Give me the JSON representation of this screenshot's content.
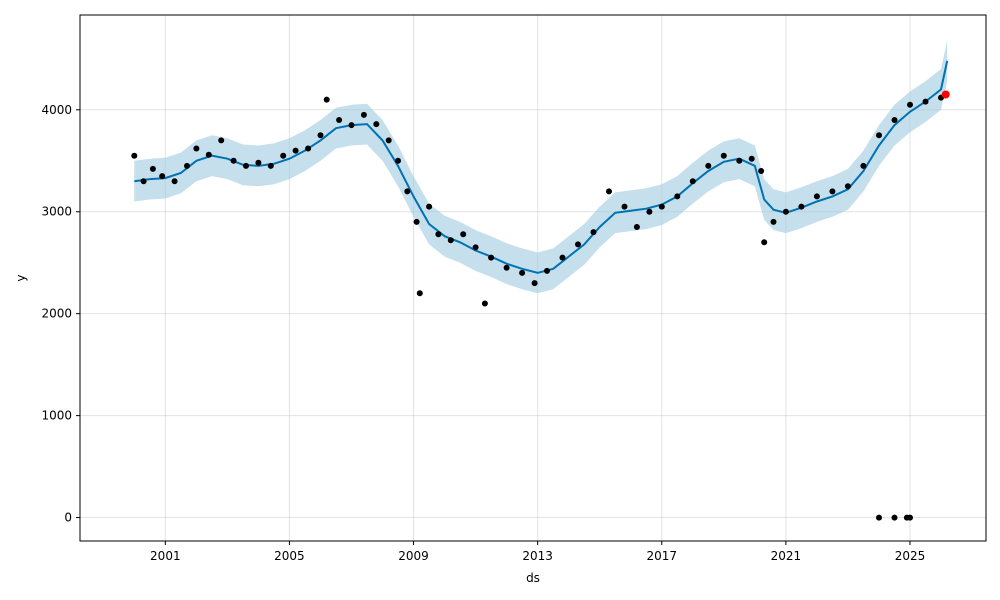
{
  "chart_data": {
    "type": "scatter",
    "xlabel": "ds",
    "ylabel": "y",
    "x_ticks": [
      "2001",
      "2005",
      "2009",
      "2013",
      "2017",
      "2021",
      "2025"
    ],
    "x_tick_years": [
      2001,
      2005,
      2009,
      2013,
      2017,
      2021,
      2025
    ],
    "y_ticks": [
      0,
      1000,
      2000,
      3000,
      4000
    ],
    "xlim": [
      1998.25,
      2027.45
    ],
    "ylim": [
      -230,
      4930
    ],
    "grid": true,
    "colors": {
      "observed": "#000000",
      "forecast_line": "#0072B2",
      "uncertainty_band": "#9ecae1",
      "highlight_point": "#ff0000"
    },
    "observed": [
      {
        "x": 2000.0,
        "y": 3550
      },
      {
        "x": 2000.3,
        "y": 3300
      },
      {
        "x": 2000.6,
        "y": 3420
      },
      {
        "x": 2000.9,
        "y": 3350
      },
      {
        "x": 2001.3,
        "y": 3300
      },
      {
        "x": 2001.7,
        "y": 3450
      },
      {
        "x": 2002.0,
        "y": 3620
      },
      {
        "x": 2002.4,
        "y": 3560
      },
      {
        "x": 2002.8,
        "y": 3700
      },
      {
        "x": 2003.2,
        "y": 3500
      },
      {
        "x": 2003.6,
        "y": 3450
      },
      {
        "x": 2004.0,
        "y": 3480
      },
      {
        "x": 2004.4,
        "y": 3450
      },
      {
        "x": 2004.8,
        "y": 3550
      },
      {
        "x": 2005.2,
        "y": 3600
      },
      {
        "x": 2005.6,
        "y": 3620
      },
      {
        "x": 2006.0,
        "y": 3750
      },
      {
        "x": 2006.2,
        "y": 4100
      },
      {
        "x": 2006.6,
        "y": 3900
      },
      {
        "x": 2007.0,
        "y": 3850
      },
      {
        "x": 2007.4,
        "y": 3950
      },
      {
        "x": 2007.8,
        "y": 3860
      },
      {
        "x": 2008.2,
        "y": 3700
      },
      {
        "x": 2008.5,
        "y": 3500
      },
      {
        "x": 2008.8,
        "y": 3200
      },
      {
        "x": 2009.1,
        "y": 2900
      },
      {
        "x": 2009.2,
        "y": 2200
      },
      {
        "x": 2009.5,
        "y": 3050
      },
      {
        "x": 2009.8,
        "y": 2780
      },
      {
        "x": 2010.2,
        "y": 2720
      },
      {
        "x": 2010.6,
        "y": 2780
      },
      {
        "x": 2011.0,
        "y": 2650
      },
      {
        "x": 2011.3,
        "y": 2100
      },
      {
        "x": 2011.5,
        "y": 2550
      },
      {
        "x": 2012.0,
        "y": 2450
      },
      {
        "x": 2012.5,
        "y": 2400
      },
      {
        "x": 2012.9,
        "y": 2300
      },
      {
        "x": 2013.3,
        "y": 2420
      },
      {
        "x": 2013.8,
        "y": 2550
      },
      {
        "x": 2014.3,
        "y": 2680
      },
      {
        "x": 2014.8,
        "y": 2800
      },
      {
        "x": 2015.3,
        "y": 3200
      },
      {
        "x": 2015.8,
        "y": 3050
      },
      {
        "x": 2016.2,
        "y": 2850
      },
      {
        "x": 2016.6,
        "y": 3000
      },
      {
        "x": 2017.0,
        "y": 3050
      },
      {
        "x": 2017.5,
        "y": 3150
      },
      {
        "x": 2018.0,
        "y": 3300
      },
      {
        "x": 2018.5,
        "y": 3450
      },
      {
        "x": 2019.0,
        "y": 3550
      },
      {
        "x": 2019.5,
        "y": 3500
      },
      {
        "x": 2019.9,
        "y": 3520
      },
      {
        "x": 2020.2,
        "y": 3400
      },
      {
        "x": 2020.3,
        "y": 2700
      },
      {
        "x": 2020.6,
        "y": 2900
      },
      {
        "x": 2021.0,
        "y": 3000
      },
      {
        "x": 2021.5,
        "y": 3050
      },
      {
        "x": 2022.0,
        "y": 3150
      },
      {
        "x": 2022.5,
        "y": 3200
      },
      {
        "x": 2023.0,
        "y": 3250
      },
      {
        "x": 2023.5,
        "y": 3450
      },
      {
        "x": 2024.0,
        "y": 3750
      },
      {
        "x": 2024.5,
        "y": 3900
      },
      {
        "x": 2025.0,
        "y": 4050
      },
      {
        "x": 2025.5,
        "y": 4080
      },
      {
        "x": 2026.0,
        "y": 4120
      },
      {
        "x": 2024.0,
        "y": 0
      },
      {
        "x": 2024.5,
        "y": 0
      },
      {
        "x": 2024.9,
        "y": 0
      },
      {
        "x": 2025.0,
        "y": 0
      }
    ],
    "forecast": [
      {
        "x": 2000.0,
        "y": 3300
      },
      {
        "x": 2000.5,
        "y": 3320
      },
      {
        "x": 2001.0,
        "y": 3330
      },
      {
        "x": 2001.5,
        "y": 3380
      },
      {
        "x": 2002.0,
        "y": 3500
      },
      {
        "x": 2002.5,
        "y": 3550
      },
      {
        "x": 2003.0,
        "y": 3520
      },
      {
        "x": 2003.5,
        "y": 3460
      },
      {
        "x": 2004.0,
        "y": 3450
      },
      {
        "x": 2004.5,
        "y": 3470
      },
      {
        "x": 2005.0,
        "y": 3520
      },
      {
        "x": 2005.5,
        "y": 3600
      },
      {
        "x": 2006.0,
        "y": 3700
      },
      {
        "x": 2006.5,
        "y": 3820
      },
      {
        "x": 2007.0,
        "y": 3850
      },
      {
        "x": 2007.5,
        "y": 3860
      },
      {
        "x": 2008.0,
        "y": 3700
      },
      {
        "x": 2008.5,
        "y": 3450
      },
      {
        "x": 2009.0,
        "y": 3150
      },
      {
        "x": 2009.5,
        "y": 2880
      },
      {
        "x": 2010.0,
        "y": 2760
      },
      {
        "x": 2010.5,
        "y": 2700
      },
      {
        "x": 2011.0,
        "y": 2620
      },
      {
        "x": 2011.5,
        "y": 2560
      },
      {
        "x": 2012.0,
        "y": 2490
      },
      {
        "x": 2012.5,
        "y": 2440
      },
      {
        "x": 2013.0,
        "y": 2400
      },
      {
        "x": 2013.5,
        "y": 2440
      },
      {
        "x": 2014.0,
        "y": 2560
      },
      {
        "x": 2014.5,
        "y": 2680
      },
      {
        "x": 2015.0,
        "y": 2850
      },
      {
        "x": 2015.5,
        "y": 2990
      },
      {
        "x": 2016.0,
        "y": 3010
      },
      {
        "x": 2016.5,
        "y": 3030
      },
      {
        "x": 2017.0,
        "y": 3070
      },
      {
        "x": 2017.5,
        "y": 3150
      },
      {
        "x": 2018.0,
        "y": 3280
      },
      {
        "x": 2018.5,
        "y": 3400
      },
      {
        "x": 2019.0,
        "y": 3490
      },
      {
        "x": 2019.5,
        "y": 3520
      },
      {
        "x": 2020.0,
        "y": 3450
      },
      {
        "x": 2020.3,
        "y": 3120
      },
      {
        "x": 2020.6,
        "y": 3020
      },
      {
        "x": 2021.0,
        "y": 2990
      },
      {
        "x": 2021.5,
        "y": 3040
      },
      {
        "x": 2022.0,
        "y": 3100
      },
      {
        "x": 2022.5,
        "y": 3150
      },
      {
        "x": 2023.0,
        "y": 3220
      },
      {
        "x": 2023.5,
        "y": 3400
      },
      {
        "x": 2024.0,
        "y": 3650
      },
      {
        "x": 2024.5,
        "y": 3850
      },
      {
        "x": 2025.0,
        "y": 3980
      },
      {
        "x": 2025.5,
        "y": 4080
      },
      {
        "x": 2026.0,
        "y": 4200
      },
      {
        "x": 2026.2,
        "y": 4480
      }
    ],
    "uncertainty_halfwidth": 200,
    "highlight_point": {
      "x": 2026.15,
      "y": 4150
    }
  }
}
